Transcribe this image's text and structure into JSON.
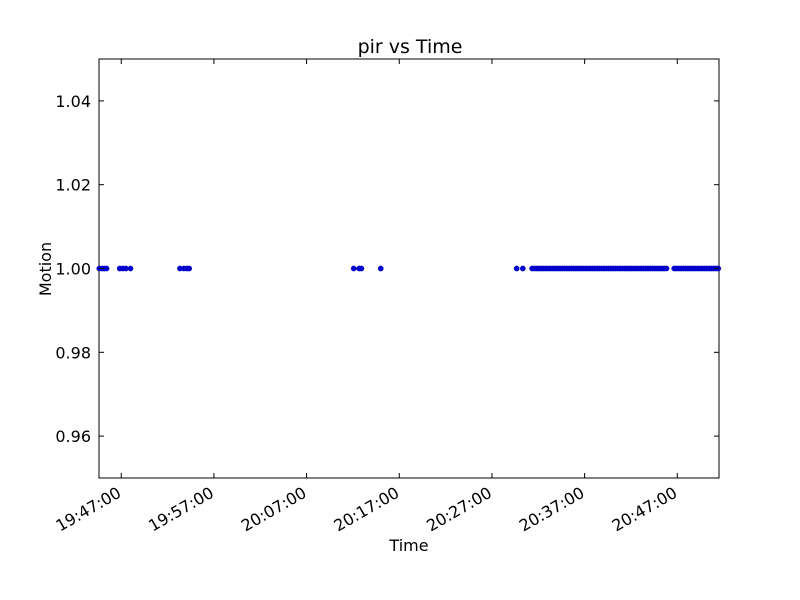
{
  "chart_data": {
    "type": "scatter",
    "title": "pir vs Time",
    "xlabel": "Time",
    "ylabel": "Motion",
    "xlim": [
      "19:44:36",
      "20:51:30"
    ],
    "ylim": [
      0.95,
      1.05
    ],
    "x_ticks": [
      "19:47:00",
      "19:57:00",
      "20:07:00",
      "20:17:00",
      "20:27:00",
      "20:37:00",
      "20:47:00"
    ],
    "y_ticks": [
      "0.96",
      "0.98",
      "1.00",
      "1.02",
      "1.04"
    ],
    "grid": false,
    "marker_color": "#0000cc",
    "series": [
      {
        "points": [
          {
            "x": "19:44:38",
            "y": 1.0
          },
          {
            "x": "19:44:55",
            "y": 1.0
          },
          {
            "x": "19:45:10",
            "y": 1.0
          },
          {
            "x": "19:45:25",
            "y": 1.0
          },
          {
            "x": "19:46:50",
            "y": 1.0
          },
          {
            "x": "19:47:10",
            "y": 1.0
          },
          {
            "x": "19:47:30",
            "y": 1.0
          },
          {
            "x": "19:48:00",
            "y": 1.0
          },
          {
            "x": "19:53:20",
            "y": 1.0
          },
          {
            "x": "19:53:45",
            "y": 1.0
          },
          {
            "x": "19:54:05",
            "y": 1.0
          },
          {
            "x": "19:54:20",
            "y": 1.0
          },
          {
            "x": "20:12:05",
            "y": 1.0
          },
          {
            "x": "20:12:40",
            "y": 1.0
          },
          {
            "x": "20:12:55",
            "y": 1.0
          },
          {
            "x": "20:15:00",
            "y": 1.0
          },
          {
            "x": "20:29:40",
            "y": 1.0
          },
          {
            "x": "20:30:20",
            "y": 1.0
          }
        ],
        "dense_ranges": [
          {
            "from": "20:31:20",
            "to": "20:45:55",
            "step_seconds": 15,
            "y": 1.0
          },
          {
            "from": "20:46:40",
            "to": "20:51:30",
            "step_seconds": 15,
            "y": 1.0
          }
        ]
      }
    ]
  }
}
